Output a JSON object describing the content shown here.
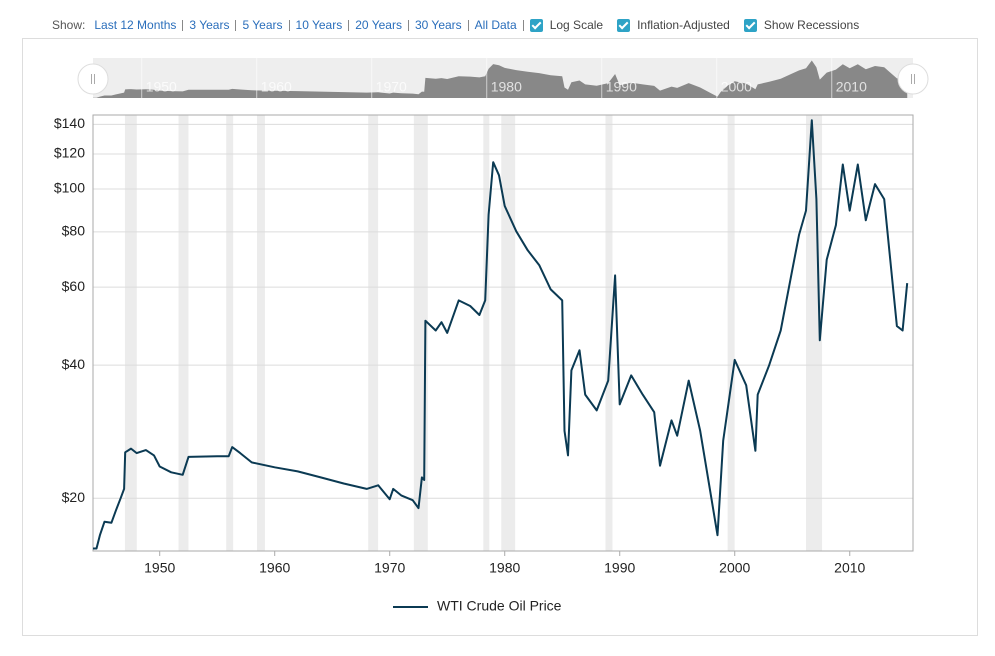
{
  "controls": {
    "show_label": "Show:",
    "ranges": [
      "Last 12 Months",
      "3 Years",
      "5 Years",
      "10 Years",
      "20 Years",
      "30 Years",
      "All Data"
    ],
    "checkboxes": [
      {
        "label": "Log Scale",
        "checked": true
      },
      {
        "label": "Inflation-Adjusted",
        "checked": true
      },
      {
        "label": "Show Recessions",
        "checked": true
      }
    ]
  },
  "chart_data": {
    "type": "line",
    "log_scale": true,
    "grid": true,
    "legend": "bottom",
    "x": [
      1944.2,
      1944.5,
      1944.8,
      1945.2,
      1945.8,
      1946.2,
      1946.6,
      1946.9,
      1947.0,
      1947.5,
      1948.0,
      1948.8,
      1949.5,
      1950.0,
      1951.0,
      1952.0,
      1952.5,
      1955.0,
      1956.0,
      1956.3,
      1957.0,
      1958.0,
      1960.0,
      1962.0,
      1964.0,
      1966.0,
      1968.0,
      1969.0,
      1970.0,
      1970.3,
      1971.0,
      1972.0,
      1972.5,
      1972.8,
      1973.0,
      1973.1,
      1974.0,
      1974.5,
      1975.0,
      1976.0,
      1977.0,
      1977.8,
      1978.3,
      1978.6,
      1979.0,
      1979.5,
      1980.0,
      1981.0,
      1982.0,
      1983.0,
      1984.0,
      1985.0,
      1985.2,
      1985.5,
      1985.8,
      1986.5,
      1987.0,
      1988.0,
      1989.0,
      1989.6,
      1990.0,
      1991.0,
      1992.0,
      1993.0,
      1993.5,
      1994.5,
      1995.0,
      1996.0,
      1997.0,
      1998.0,
      1998.5,
      1999.0,
      2000.0,
      2001.0,
      2001.8,
      2002.0,
      2003.0,
      2004.0,
      2005.0,
      2005.6,
      2006.2,
      2006.7,
      2007.1,
      2007.4,
      2008.0,
      2008.8,
      2009.4,
      2010.0,
      2010.7,
      2011.4,
      2012.2,
      2013.0,
      2013.7,
      2014.1,
      2014.6,
      2015.0
    ],
    "series": [
      {
        "name": "WTI Crude Oil Price",
        "color": "#0b3a53",
        "values": [
          15.4,
          15.4,
          16.5,
          17.7,
          17.6,
          18.8,
          20.0,
          21.0,
          25.4,
          25.9,
          25.3,
          25.7,
          25.0,
          23.6,
          22.9,
          22.6,
          24.8,
          24.9,
          24.9,
          26.1,
          25.3,
          24.1,
          23.5,
          23.0,
          22.3,
          21.6,
          21.0,
          21.4,
          19.9,
          21.0,
          20.3,
          19.8,
          19.0,
          22.3,
          22.0,
          50.4,
          47.9,
          50.0,
          47.3,
          56.0,
          54.4,
          51.9,
          56.0,
          87.5,
          115.0,
          107.4,
          91.6,
          80.3,
          72.7,
          67.3,
          59.3,
          56.0,
          28.4,
          25.0,
          38.9,
          43.2,
          34.3,
          31.6,
          36.9,
          63.8,
          32.6,
          37.9,
          34.3,
          31.3,
          23.7,
          30.0,
          27.7,
          36.9,
          28.4,
          19.8,
          16.5,
          27.0,
          41.1,
          36.0,
          25.6,
          34.3,
          40.0,
          47.9,
          65.5,
          78.9,
          89.4,
          143.0,
          94.9,
          45.5,
          69.2,
          82.9,
          113.6,
          89.4,
          113.6,
          85.0,
          102.6,
          94.9,
          62.2,
          49.0,
          47.9,
          61.3
        ]
      }
    ],
    "xlim": [
      1944.2,
      2015.5
    ],
    "xticks": [
      1950,
      1960,
      1970,
      1980,
      1990,
      2000,
      2010
    ],
    "ylim": [
      15.2,
      147
    ],
    "yticks": [
      {
        "value": 20,
        "label": "$20"
      },
      {
        "value": 40,
        "label": "$40"
      },
      {
        "value": 60,
        "label": "$60"
      },
      {
        "value": 80,
        "label": "$80"
      },
      {
        "value": 100,
        "label": "$100"
      },
      {
        "value": 120,
        "label": "$120"
      },
      {
        "value": 140,
        "label": "$140"
      }
    ],
    "recessions": [
      [
        1946.98,
        1948.01
      ],
      [
        1951.64,
        1952.5
      ],
      [
        1955.78,
        1956.39
      ],
      [
        1958.46,
        1959.15
      ],
      [
        1968.13,
        1968.99
      ],
      [
        1972.1,
        1973.31
      ],
      [
        1978.14,
        1978.66
      ],
      [
        1979.7,
        1980.91
      ],
      [
        1988.76,
        1989.37
      ],
      [
        1999.38,
        1999.99
      ],
      [
        2006.2,
        2007.59
      ]
    ],
    "recession_color": "#ececec"
  }
}
